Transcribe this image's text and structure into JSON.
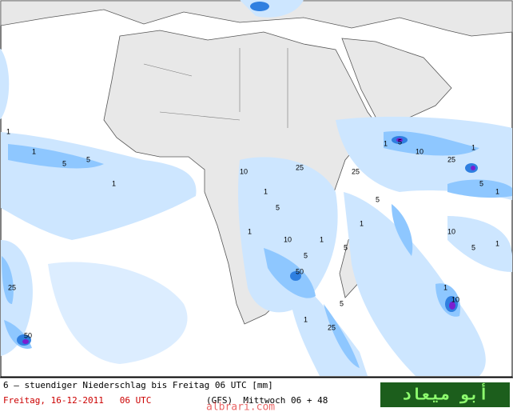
{
  "caption": {
    "line1": "6 – stuendiger Niederschlag bis Freitag 06 UTC [mm]",
    "date": "Freitag, 16-12-2011   06 UTC",
    "run": "(GFS)  Mittwoch 06 + 48"
  },
  "logo": "أبو ميعاد",
  "watermark": "albrari.com",
  "contour_labels": [
    "1",
    "1",
    "5",
    "5",
    "1",
    "10",
    "25",
    "1",
    "5",
    "1",
    "10",
    "5",
    "50",
    "1",
    "5",
    "25",
    "1",
    "5",
    "10",
    "25",
    "1",
    "5",
    "1",
    "10",
    "5",
    "1",
    "25",
    "50",
    "1",
    "5",
    "1",
    "10",
    "5",
    "1",
    "25"
  ]
}
